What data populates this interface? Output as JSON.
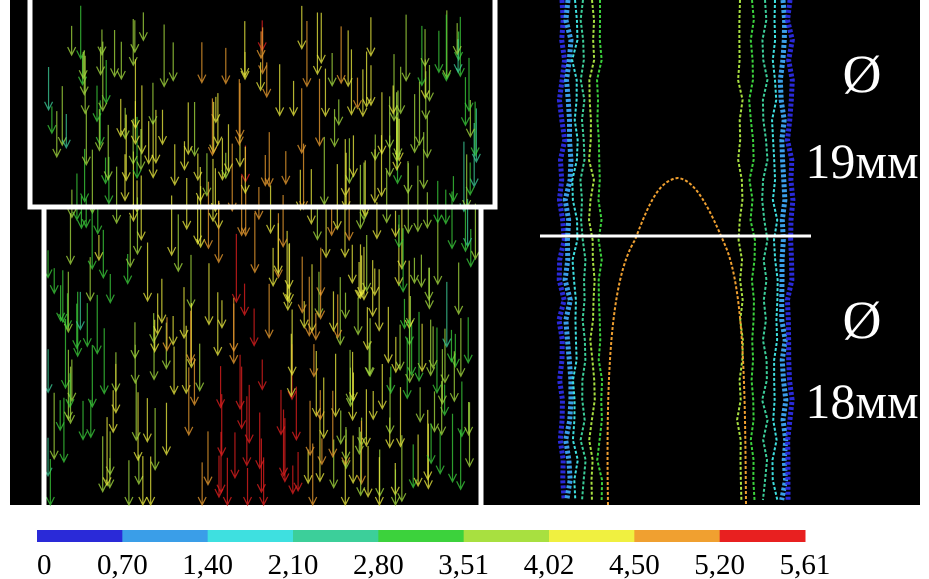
{
  "labels": {
    "upper_symbol": "Ø",
    "upper_size": "19мм",
    "lower_symbol": "Ø",
    "lower_size": "18мм"
  },
  "colorbar": {
    "colors": [
      "#2a2ad8",
      "#3a9ee8",
      "#3ee0e0",
      "#3ccf9a",
      "#3cd23c",
      "#a8e040",
      "#f0f040",
      "#f0a030",
      "#e82020"
    ],
    "ticks": [
      "0",
      "0,70",
      "1,40",
      "2,10",
      "2,80",
      "3,51",
      "4,02",
      "4,50",
      "5,20",
      "5,61"
    ]
  }
}
